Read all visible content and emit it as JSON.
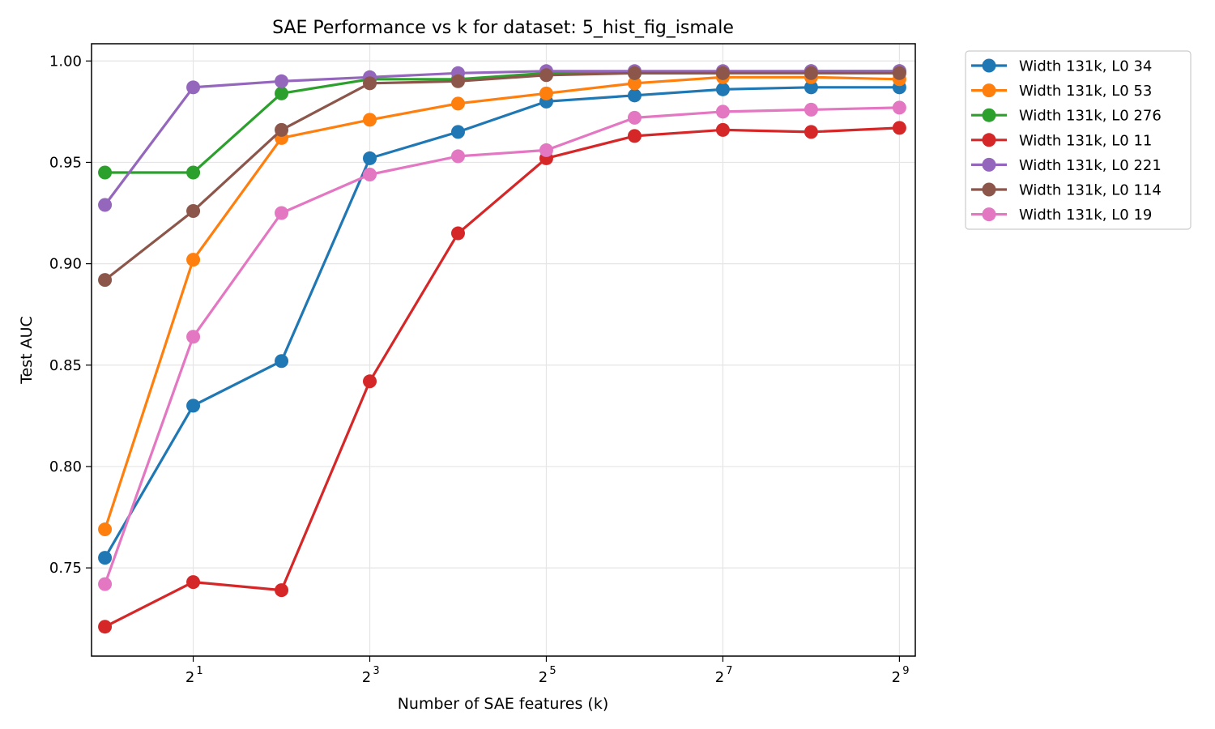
{
  "chart_data": {
    "type": "line",
    "title": "SAE Performance vs k for dataset: 5_hist_fig_ismale",
    "xlabel": "Number of SAE features (k)",
    "ylabel": "Test AUC",
    "x_scale": "log2",
    "x": [
      1,
      2,
      4,
      8,
      16,
      32,
      64,
      128,
      256,
      512
    ],
    "xlim": [
      0.9,
      580
    ],
    "ylim": [
      0.7065,
      1.0085
    ],
    "x_ticks": [
      {
        "value": 2,
        "base": "2",
        "exp": "1"
      },
      {
        "value": 8,
        "base": "2",
        "exp": "3"
      },
      {
        "value": 32,
        "base": "2",
        "exp": "5"
      },
      {
        "value": 128,
        "base": "2",
        "exp": "7"
      },
      {
        "value": 512,
        "base": "2",
        "exp": "9"
      }
    ],
    "y_ticks": [
      {
        "value": 0.75,
        "label": "0.75"
      },
      {
        "value": 0.8,
        "label": "0.80"
      },
      {
        "value": 0.85,
        "label": "0.85"
      },
      {
        "value": 0.9,
        "label": "0.90"
      },
      {
        "value": 0.95,
        "label": "0.95"
      },
      {
        "value": 1.0,
        "label": "1.00"
      }
    ],
    "grid": true,
    "legend_position": "outside-right",
    "series": [
      {
        "name": "Width 131k, L0 34",
        "color": "#1f77b4",
        "values": [
          0.755,
          0.83,
          0.852,
          0.952,
          0.965,
          0.98,
          0.983,
          0.986,
          0.987,
          0.987
        ]
      },
      {
        "name": "Width 131k, L0 53",
        "color": "#ff7f0e",
        "values": [
          0.769,
          0.902,
          0.962,
          0.971,
          0.979,
          0.984,
          0.989,
          0.992,
          0.992,
          0.991
        ]
      },
      {
        "name": "Width 131k, L0 276",
        "color": "#2ca02c",
        "values": [
          0.945,
          0.945,
          0.984,
          0.991,
          0.991,
          0.994,
          0.994,
          0.994,
          0.995,
          0.995
        ]
      },
      {
        "name": "Width 131k, L0 11",
        "color": "#d62728",
        "values": [
          0.721,
          0.743,
          0.739,
          0.842,
          0.915,
          0.952,
          0.963,
          0.966,
          0.965,
          0.967
        ]
      },
      {
        "name": "Width 131k, L0 221",
        "color": "#9467bd",
        "values": [
          0.929,
          0.987,
          0.99,
          0.992,
          0.994,
          0.995,
          0.995,
          0.995,
          0.995,
          0.995
        ]
      },
      {
        "name": "Width 131k, L0 114",
        "color": "#8c564b",
        "values": [
          0.892,
          0.926,
          0.966,
          0.989,
          0.99,
          0.993,
          0.994,
          0.994,
          0.994,
          0.994
        ]
      },
      {
        "name": "Width 131k, L0 19",
        "color": "#e377c2",
        "values": [
          0.742,
          0.864,
          0.925,
          0.944,
          0.953,
          0.956,
          0.972,
          0.975,
          0.976,
          0.977
        ]
      }
    ]
  }
}
